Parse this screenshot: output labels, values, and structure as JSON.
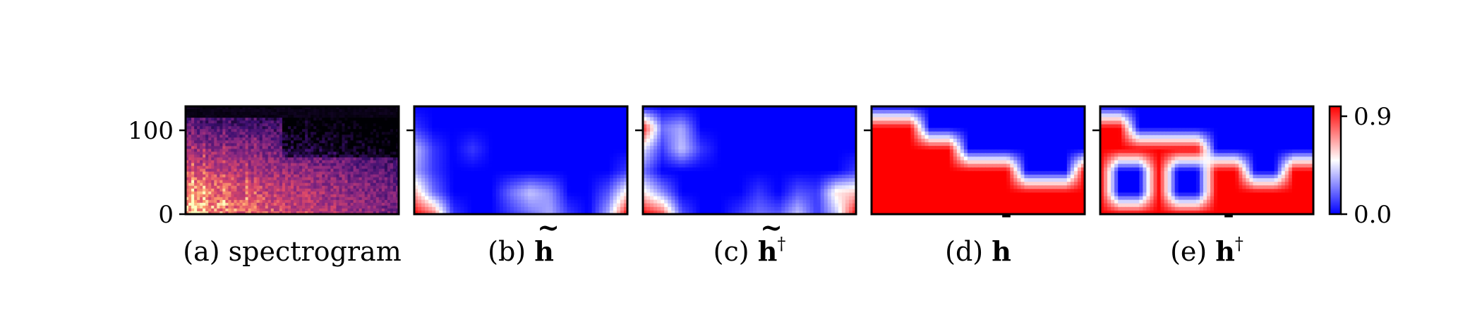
{
  "chart_data": [
    {
      "type": "heatmap",
      "panel_label": "(a) spectrogram",
      "ylim": [
        0,
        128
      ],
      "yticks": [
        "0",
        "100"
      ],
      "colormap": "magma",
      "description_levels": {
        "rows_low_to_high": [
          0.95,
          0.9,
          0.82,
          0.7,
          0.58,
          0.45,
          0.32,
          0.2
        ],
        "time_decay": 0.55
      }
    },
    {
      "type": "heatmap",
      "panel_label": "(b) h̃",
      "label_prefix": "(b) ",
      "symbol": "h",
      "accent": "~",
      "superscript": "",
      "colormap": "bwr",
      "grid_rows_bottom_to_top": [
        [
          0.9,
          0.7,
          0.1,
          0.0,
          0.0,
          0.1,
          0.2,
          0.3,
          0.1,
          0.0,
          0.3,
          0.9
        ],
        [
          0.6,
          0.2,
          0.0,
          0.0,
          0.0,
          0.2,
          0.35,
          0.25,
          0.0,
          0.0,
          0.15,
          0.5
        ],
        [
          0.3,
          0.1,
          0.0,
          0.0,
          0.0,
          0.0,
          0.0,
          0.0,
          0.0,
          0.0,
          0.0,
          0.1
        ],
        [
          0.35,
          0.1,
          0.0,
          0.1,
          0.0,
          0.0,
          0.0,
          0.0,
          0.0,
          0.0,
          0.0,
          0.0
        ],
        [
          0.1,
          0.0,
          0.0,
          0.0,
          0.0,
          0.0,
          0.0,
          0.0,
          0.0,
          0.0,
          0.0,
          0.0
        ],
        [
          0.0,
          0.0,
          0.0,
          0.0,
          0.0,
          0.0,
          0.0,
          0.0,
          0.0,
          0.0,
          0.0,
          0.0
        ]
      ]
    },
    {
      "type": "heatmap",
      "panel_label": "(c) h̃†",
      "label_prefix": "(c) ",
      "symbol": "h",
      "accent": "~",
      "superscript": "†",
      "colormap": "bwr",
      "grid_rows_bottom_to_top": [
        [
          0.9,
          0.75,
          0.15,
          0.0,
          0.0,
          0.1,
          0.2,
          0.15,
          0.35,
          0.1,
          0.35,
          0.9
        ],
        [
          0.5,
          0.25,
          0.0,
          0.0,
          0.0,
          0.0,
          0.1,
          0.0,
          0.15,
          0.1,
          0.5,
          0.55
        ],
        [
          0.2,
          0.0,
          0.0,
          0.0,
          0.0,
          0.0,
          0.0,
          0.0,
          0.0,
          0.0,
          0.0,
          0.1
        ],
        [
          0.4,
          0.1,
          0.35,
          0.1,
          0.0,
          0.0,
          0.0,
          0.0,
          0.0,
          0.0,
          0.0,
          0.0
        ],
        [
          0.85,
          0.2,
          0.3,
          0.0,
          0.0,
          0.0,
          0.0,
          0.0,
          0.0,
          0.0,
          0.0,
          0.0
        ],
        [
          0.0,
          0.0,
          0.0,
          0.0,
          0.0,
          0.0,
          0.0,
          0.0,
          0.0,
          0.0,
          0.0,
          0.0
        ]
      ]
    },
    {
      "type": "heatmap",
      "panel_label": "(d) h̄",
      "label_prefix": "(d) ",
      "symbol": "h",
      "accent": "¯",
      "superscript": "",
      "colormap": "bwr",
      "grid_rows_bottom_to_top": [
        [
          0.9,
          0.9,
          0.9,
          0.9,
          0.9,
          0.9,
          0.9,
          0.9,
          0.9,
          0.9,
          0.9,
          0.9
        ],
        [
          0.9,
          0.9,
          0.9,
          0.9,
          0.9,
          0.9,
          0.9,
          0.9,
          0.9,
          0.9,
          0.9,
          0.9
        ],
        [
          0.9,
          0.9,
          0.9,
          0.9,
          0.9,
          0.9,
          0.9,
          0.9,
          0.0,
          0.0,
          0.0,
          0.9
        ],
        [
          0.9,
          0.9,
          0.9,
          0.9,
          0.9,
          0.0,
          0.0,
          0.0,
          0.0,
          0.0,
          0.0,
          0.0
        ],
        [
          0.9,
          0.9,
          0.9,
          0.0,
          0.0,
          0.0,
          0.0,
          0.0,
          0.0,
          0.0,
          0.0,
          0.0
        ],
        [
          0.0,
          0.0,
          0.0,
          0.0,
          0.0,
          0.0,
          0.0,
          0.0,
          0.0,
          0.0,
          0.0,
          0.0
        ]
      ]
    },
    {
      "type": "heatmap",
      "panel_label": "(e) h̄†",
      "label_prefix": "(e) ",
      "symbol": "h",
      "accent": "¯",
      "superscript": "†",
      "colormap": "bwr",
      "grid_rows_bottom_to_top": [
        [
          0.9,
          0.9,
          0.9,
          0.9,
          0.9,
          0.9,
          0.9,
          0.9,
          0.9,
          0.9,
          0.9,
          0.9
        ],
        [
          0.9,
          0.0,
          0.0,
          0.9,
          0.0,
          0.0,
          0.9,
          0.9,
          0.9,
          0.9,
          0.9,
          0.9
        ],
        [
          0.9,
          0.0,
          0.0,
          0.9,
          0.0,
          0.0,
          0.9,
          0.9,
          0.0,
          0.0,
          0.9,
          0.9
        ],
        [
          0.9,
          0.9,
          0.9,
          0.9,
          0.9,
          0.9,
          0.0,
          0.0,
          0.0,
          0.0,
          0.0,
          0.0
        ],
        [
          0.9,
          0.9,
          0.0,
          0.0,
          0.0,
          0.0,
          0.0,
          0.0,
          0.0,
          0.0,
          0.0,
          0.0
        ],
        [
          0.0,
          0.0,
          0.0,
          0.0,
          0.0,
          0.0,
          0.0,
          0.0,
          0.0,
          0.0,
          0.0,
          0.0
        ]
      ]
    }
  ],
  "colorbar": {
    "range": [
      0.0,
      0.9
    ],
    "ticks": [
      "0.9",
      "0.0"
    ],
    "colors": {
      "low": "#0000ff",
      "mid": "#ffffff",
      "high": "#ff0000"
    }
  }
}
